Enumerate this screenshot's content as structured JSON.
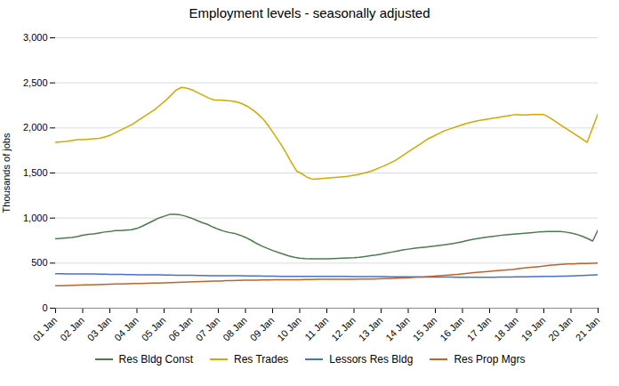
{
  "chart_data": {
    "type": "line",
    "title": "Employment levels - seasonally adjusted",
    "ylabel": "Thousands of jobs",
    "xlim": [
      0,
      20
    ],
    "xticks": [
      {
        "value": 0,
        "label": "01 Jan"
      },
      {
        "value": 1,
        "label": "02 Jan"
      },
      {
        "value": 2,
        "label": "03 Jan"
      },
      {
        "value": 3,
        "label": "04 Jan"
      },
      {
        "value": 4,
        "label": "05 Jan"
      },
      {
        "value": 5,
        "label": "06 Jan"
      },
      {
        "value": 6,
        "label": "07 Jan"
      },
      {
        "value": 7,
        "label": "08 Jan"
      },
      {
        "value": 8,
        "label": "09 Jan"
      },
      {
        "value": 9,
        "label": "10 Jan"
      },
      {
        "value": 10,
        "label": "11 Jan"
      },
      {
        "value": 11,
        "label": "12 Jan"
      },
      {
        "value": 12,
        "label": "13 Jan"
      },
      {
        "value": 13,
        "label": "14 Jan"
      },
      {
        "value": 14,
        "label": "15 Jan"
      },
      {
        "value": 15,
        "label": "16 Jan"
      },
      {
        "value": 16,
        "label": "17 Jan"
      },
      {
        "value": 17,
        "label": "18 Jan"
      },
      {
        "value": 18,
        "label": "19 Jan"
      },
      {
        "value": 19,
        "label": "20 Jan"
      },
      {
        "value": 20,
        "label": "21 Jan"
      }
    ],
    "ylim": [
      0,
      3000
    ],
    "yticks": [
      0,
      500,
      {
        "value": 1000,
        "label": "1,000"
      },
      {
        "value": 1500,
        "label": "1,500"
      },
      {
        "value": 2000,
        "label": "2,000"
      },
      {
        "value": 2500,
        "label": "2,500"
      },
      {
        "value": 3000,
        "label": "3,000"
      }
    ],
    "grid": true,
    "legend": "bottom",
    "series": [
      {
        "name": "Res Bldg Const",
        "color": "#4a7c4e",
        "x": [
          0,
          0.2,
          0.4,
          0.6,
          0.8,
          1,
          1.2,
          1.4,
          1.6,
          1.8,
          2,
          2.2,
          2.4,
          2.6,
          2.8,
          3,
          3.2,
          3.4,
          3.6,
          3.8,
          4,
          4.2,
          4.4,
          4.6,
          4.8,
          5,
          5.2,
          5.4,
          5.6,
          5.8,
          6,
          6.2,
          6.4,
          6.6,
          6.8,
          7,
          7.2,
          7.4,
          7.6,
          7.8,
          8,
          8.2,
          8.4,
          8.6,
          8.8,
          9,
          9.2,
          9.4,
          9.6,
          9.8,
          10,
          10.2,
          10.4,
          10.6,
          10.8,
          11,
          11.2,
          11.4,
          11.6,
          11.8,
          12,
          12.2,
          12.4,
          12.6,
          12.8,
          13,
          13.2,
          13.4,
          13.6,
          13.8,
          14,
          14.2,
          14.4,
          14.6,
          14.8,
          15,
          15.2,
          15.4,
          15.6,
          15.8,
          16,
          16.2,
          16.4,
          16.6,
          16.8,
          17,
          17.2,
          17.4,
          17.6,
          17.8,
          18,
          18.2,
          18.4,
          18.6,
          18.8,
          19,
          19.2,
          19.4,
          19.6,
          19.8,
          20
        ],
        "values": [
          770,
          775,
          780,
          785,
          795,
          810,
          820,
          825,
          835,
          845,
          850,
          860,
          860,
          865,
          870,
          885,
          910,
          940,
          970,
          1000,
          1020,
          1040,
          1040,
          1035,
          1020,
          1000,
          975,
          950,
          930,
          900,
          875,
          855,
          840,
          830,
          810,
          785,
          755,
          720,
          690,
          665,
          640,
          620,
          600,
          580,
          565,
          555,
          550,
          548,
          548,
          548,
          548,
          550,
          553,
          555,
          558,
          560,
          565,
          573,
          582,
          590,
          600,
          612,
          623,
          635,
          647,
          655,
          663,
          670,
          677,
          683,
          690,
          698,
          706,
          715,
          725,
          738,
          752,
          765,
          775,
          785,
          793,
          800,
          808,
          814,
          820,
          825,
          830,
          835,
          840,
          845,
          848,
          850,
          852,
          850,
          845,
          835,
          820,
          800,
          775,
          745,
          870
        ]
      },
      {
        "name": "Res Trades",
        "color": "#d4a800",
        "x": [
          0,
          0.202,
          0.404,
          0.6061,
          0.8081,
          1.0101,
          1.2121,
          1.4141,
          1.6162,
          1.8182,
          2.0202,
          2.2222,
          2.4242,
          2.6263,
          2.8283,
          3.0303,
          3.2323,
          3.4343,
          3.6364,
          3.8384,
          4.0404,
          4.2424,
          4.4444,
          4.6465,
          4.8485,
          5.0505,
          5.2525,
          5.4545,
          5.6566,
          5.8586,
          6.0606,
          6.2626,
          6.4646,
          6.6667,
          6.8687,
          7.0707,
          7.2727,
          7.4747,
          7.6768,
          7.8788,
          8.0808,
          8.2828,
          8.4848,
          8.6869,
          8.8889,
          9.0909,
          9.2929,
          9.4949,
          9.697,
          9.899,
          10.101,
          10.303,
          10.5051,
          10.7071,
          10.9091,
          11.1111,
          11.3131,
          11.5152,
          11.7172,
          11.9192,
          12.1212,
          12.3232,
          12.5253,
          12.7273,
          12.9293,
          13.1313,
          13.3333,
          13.5354,
          13.7374,
          13.9394,
          14.1414,
          14.3434,
          14.5455,
          14.7475,
          14.9495,
          15.1515,
          15.3535,
          15.5556,
          15.7576,
          15.9596,
          16.1616,
          16.3636,
          16.5657,
          16.7677,
          16.9697,
          17.1717,
          17.3737,
          17.5758,
          17.7778,
          17.9798,
          18.1818,
          18.3838,
          18.5859,
          18.7879,
          18.9899,
          19.1919,
          19.3939,
          19.596,
          19.798,
          20
        ],
        "values": [
          1840,
          1845,
          1850,
          1860,
          1870,
          1870,
          1875,
          1880,
          1885,
          1900,
          1920,
          1950,
          1980,
          2010,
          2040,
          2080,
          2120,
          2160,
          2200,
          2250,
          2300,
          2360,
          2420,
          2450,
          2440,
          2420,
          2390,
          2360,
          2330,
          2310,
          2310,
          2305,
          2300,
          2290,
          2270,
          2240,
          2200,
          2150,
          2090,
          2010,
          1920,
          1830,
          1730,
          1620,
          1520,
          1490,
          1450,
          1430,
          1435,
          1440,
          1445,
          1450,
          1455,
          1460,
          1470,
          1480,
          1495,
          1510,
          1530,
          1555,
          1580,
          1610,
          1640,
          1680,
          1720,
          1760,
          1800,
          1840,
          1880,
          1910,
          1940,
          1970,
          1990,
          2010,
          2030,
          2050,
          2065,
          2080,
          2090,
          2100,
          2110,
          2120,
          2130,
          2140,
          2150,
          2145,
          2145,
          2150,
          2150,
          2150,
          2120,
          2080,
          2040,
          2000,
          1960,
          1920,
          1880,
          1840,
          2000,
          2160
        ]
      },
      {
        "name": "Lessors Res Bldg",
        "color": "#4472c4",
        "x": [
          0,
          0.202,
          0.404,
          0.6061,
          0.8081,
          1.0101,
          1.2121,
          1.4141,
          1.6162,
          1.8182,
          2.0202,
          2.2222,
          2.4242,
          2.6263,
          2.8283,
          3.0303,
          3.2323,
          3.4343,
          3.6364,
          3.8384,
          4.0404,
          4.2424,
          4.4444,
          4.6465,
          4.8485,
          5.0505,
          5.2525,
          5.4545,
          5.6566,
          5.8586,
          6.0606,
          6.2626,
          6.4646,
          6.6667,
          6.8687,
          7.0707,
          7.2727,
          7.4747,
          7.6768,
          7.8788,
          8.0808,
          8.2828,
          8.4848,
          8.6869,
          8.8889,
          9.0909,
          9.2929,
          9.4949,
          9.697,
          9.899,
          10.101,
          10.303,
          10.5051,
          10.7071,
          10.9091,
          11.1111,
          11.3131,
          11.5152,
          11.7172,
          11.9192,
          12.1212,
          12.3232,
          12.5253,
          12.7273,
          12.9293,
          13.1313,
          13.3333,
          13.5354,
          13.7374,
          13.9394,
          14.1414,
          14.3434,
          14.5455,
          14.7475,
          14.9495,
          15.1515,
          15.3535,
          15.5556,
          15.7576,
          15.9596,
          16.1616,
          16.3636,
          16.5657,
          16.7677,
          16.9697,
          17.1717,
          17.3737,
          17.5758,
          17.7778,
          17.9798,
          18.1818,
          18.3838,
          18.5859,
          18.7879,
          18.9899,
          19.1919,
          19.3939,
          19.596,
          19.798,
          20
        ],
        "values": [
          382,
          382,
          381,
          381,
          380,
          380,
          380,
          379,
          378,
          377,
          376,
          375,
          374,
          373,
          372,
          371,
          370,
          370,
          370,
          369,
          368,
          367,
          366,
          365,
          365,
          364,
          363,
          362,
          361,
          360,
          360,
          360,
          360,
          360,
          359,
          358,
          357,
          357,
          356,
          355,
          355,
          354,
          354,
          354,
          354,
          354,
          354,
          354,
          353,
          353,
          352,
          352,
          352,
          352,
          351,
          351,
          351,
          351,
          350,
          350,
          350,
          349,
          349,
          348,
          348,
          347,
          347,
          346,
          346,
          345,
          345,
          345,
          345,
          344,
          344,
          344,
          344,
          344,
          344,
          344,
          344,
          345,
          345,
          346,
          347,
          348,
          349,
          350,
          351,
          352,
          353,
          354,
          355,
          356,
          358,
          360,
          362,
          365,
          368,
          370
        ]
      },
      {
        "name": "Res Prop Mgrs",
        "color": "#c0622a",
        "x": [
          0,
          0.2247,
          0.4494,
          0.6742,
          0.8989,
          1.1236,
          1.3483,
          1.573,
          1.7978,
          2.0225,
          2.2472,
          2.4719,
          2.6966,
          2.9213,
          3.1461,
          3.3708,
          3.5955,
          3.8202,
          4.0449,
          4.2697,
          4.4944,
          4.7191,
          4.9438,
          5.1685,
          5.3933,
          5.618,
          5.8427,
          6.0674,
          6.2921,
          6.5169,
          6.7416,
          6.9663,
          7.191,
          7.4157,
          7.6404,
          7.8652,
          8.0899,
          8.3146,
          8.5393,
          8.764,
          8.9888,
          9.2135,
          9.4382,
          9.6629,
          9.8876,
          10.1124,
          10.3371,
          10.5618,
          10.7865,
          11.0112,
          11.236,
          11.4607,
          11.6854,
          11.9101,
          12.1348,
          12.3596,
          12.5843,
          12.809,
          13.0337,
          13.2584,
          13.4831,
          13.7079,
          13.9326,
          14.1573,
          14.382,
          14.6067,
          14.8315,
          15.0562,
          15.2809,
          15.5056,
          15.7303,
          15.9551,
          16.1798,
          16.4045,
          16.6292,
          16.8539,
          17.0787,
          17.3034,
          17.5281,
          17.7528,
          17.9775,
          18.2022,
          18.427,
          18.6517,
          18.8764,
          19.1011,
          19.3258,
          19.5506,
          19.7753,
          20
        ],
        "values": [
          248,
          250,
          252,
          254,
          256,
          258,
          260,
          262,
          264,
          266,
          268,
          270,
          272,
          274,
          275,
          276,
          278,
          280,
          282,
          284,
          286,
          288,
          290,
          293,
          296,
          298,
          300,
          302,
          305,
          306,
          308,
          310,
          311,
          312,
          313,
          314,
          315,
          315,
          315,
          316,
          317,
          318,
          319,
          320,
          320,
          320,
          320,
          320,
          320,
          321,
          322,
          323,
          324,
          325,
          327,
          329,
          332,
          335,
          338,
          342,
          346,
          350,
          355,
          360,
          365,
          370,
          376,
          383,
          390,
          396,
          402,
          408,
          415,
          420,
          425,
          430,
          438,
          446,
          453,
          460,
          467,
          475,
          480,
          485,
          490,
          492,
          495,
          497,
          498,
          500
        ]
      }
    ]
  }
}
